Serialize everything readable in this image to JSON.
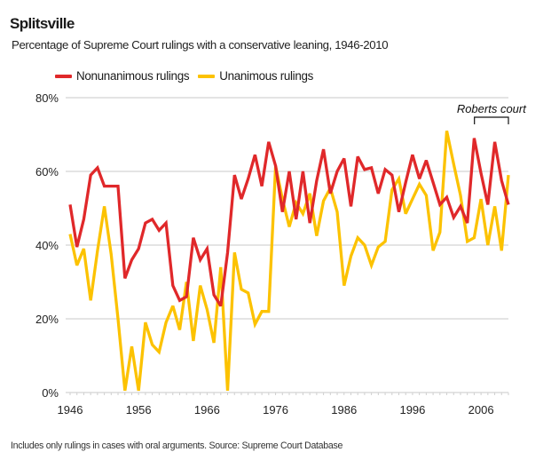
{
  "header": {
    "title": "Splitsville",
    "subtitle": "Percentage of Supreme Court rulings with a conservative leaning, 1946-2010"
  },
  "footnote": "Includes only rulings in cases with oral arguments. Source: Supreme Court Database",
  "chart_data": {
    "type": "line",
    "title": "Splitsville",
    "subtitle": "Percentage of Supreme Court rulings with a conservative leaning, 1946-2010",
    "xlabel": "",
    "ylabel": "",
    "xlim": [
      1946,
      2010
    ],
    "ylim": [
      0,
      80
    ],
    "grid": true,
    "legend_position": "top-left",
    "x_ticks": [
      1946,
      1956,
      1966,
      1976,
      1986,
      1996,
      2006
    ],
    "x_tick_labels": [
      "1946",
      "1956",
      "1966",
      "1976",
      "1986",
      "1996",
      "2006"
    ],
    "y_ticks": [
      0,
      20,
      40,
      60,
      80
    ],
    "y_tick_labels": [
      "0%",
      "20%",
      "40%",
      "60%",
      "80%"
    ],
    "x": [
      1946,
      1947,
      1948,
      1949,
      1950,
      1951,
      1952,
      1953,
      1954,
      1955,
      1956,
      1957,
      1958,
      1959,
      1960,
      1961,
      1962,
      1963,
      1964,
      1965,
      1966,
      1967,
      1968,
      1969,
      1970,
      1971,
      1972,
      1973,
      1974,
      1975,
      1976,
      1977,
      1978,
      1979,
      1980,
      1981,
      1982,
      1983,
      1984,
      1985,
      1986,
      1987,
      1988,
      1989,
      1990,
      1991,
      1992,
      1993,
      1994,
      1995,
      1996,
      1997,
      1998,
      1999,
      2000,
      2001,
      2002,
      2003,
      2004,
      2005,
      2006,
      2007,
      2008,
      2009,
      2010
    ],
    "series": [
      {
        "name": "Nonunanimous rulings",
        "color": "#e0282a",
        "values": [
          51,
          39.5,
          47,
          59,
          61,
          56,
          56,
          56,
          31,
          36,
          39,
          46,
          47,
          44,
          46,
          29,
          25,
          26,
          42,
          36,
          39,
          26.5,
          23.5,
          38,
          59,
          52.5,
          58,
          64.5,
          56,
          68,
          61.5,
          49,
          60,
          47,
          60,
          46,
          57.5,
          66,
          54,
          60,
          63.5,
          50.5,
          64,
          60.5,
          61,
          54,
          60.5,
          59,
          49,
          57,
          64.5,
          58,
          63,
          57,
          51,
          53,
          47.5,
          50.5,
          46,
          69,
          59.5,
          51,
          68,
          57.5,
          51
        ]
      },
      {
        "name": "Unanimous rulings",
        "color": "#fcc200",
        "values": [
          43,
          34.5,
          39,
          25,
          38.5,
          50.5,
          37.5,
          20,
          0.5,
          12.5,
          0.5,
          19,
          13,
          11,
          19,
          23.5,
          17,
          30,
          14,
          29,
          22.5,
          13.5,
          34,
          0.5,
          38,
          28,
          27,
          18.5,
          22,
          22,
          61.5,
          52.5,
          45,
          51.5,
          48.5,
          54,
          42.5,
          52,
          55.5,
          49,
          29,
          37,
          42,
          40,
          34.5,
          39.5,
          41,
          55,
          58,
          48.5,
          52.5,
          56.5,
          53.5,
          38.5,
          43.5,
          71,
          62,
          53.5,
          41,
          42,
          52.5,
          40,
          50.5,
          38.5,
          59
        ]
      }
    ],
    "annotations": [
      {
        "text": "Roberts court",
        "type": "bracket",
        "x_start": 2004,
        "x_end": 2010
      }
    ]
  }
}
